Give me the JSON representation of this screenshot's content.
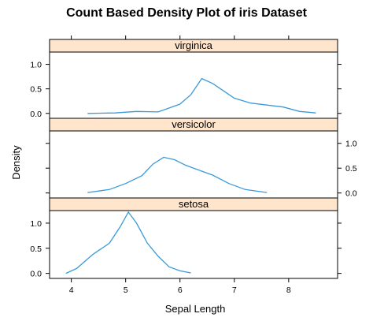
{
  "chart_data": {
    "type": "line",
    "title": "Count Based Density Plot of iris Dataset",
    "xlabel": "Sepal Length",
    "ylabel": "Density",
    "xlim": [
      3.6,
      8.9
    ],
    "ylim": [
      -0.1,
      1.25
    ],
    "x_ticks": [
      "4",
      "5",
      "6",
      "7",
      "8"
    ],
    "y_ticks": [
      "0.0",
      "0.5",
      "1.0"
    ],
    "line_color": "#3a9ad9",
    "strip_color": "#ffe5cc",
    "panels": [
      {
        "name": "virginica",
        "y_axis_side": "left",
        "points": [
          [
            4.3,
            0.0
          ],
          [
            4.8,
            0.01
          ],
          [
            5.2,
            0.04
          ],
          [
            5.6,
            0.03
          ],
          [
            6.0,
            0.19
          ],
          [
            6.2,
            0.38
          ],
          [
            6.4,
            0.71
          ],
          [
            6.6,
            0.61
          ],
          [
            6.8,
            0.46
          ],
          [
            7.0,
            0.31
          ],
          [
            7.3,
            0.21
          ],
          [
            7.6,
            0.17
          ],
          [
            7.9,
            0.13
          ],
          [
            8.2,
            0.04
          ],
          [
            8.5,
            0.01
          ]
        ]
      },
      {
        "name": "versicolor",
        "y_axis_side": "right",
        "points": [
          [
            4.3,
            0.01
          ],
          [
            4.7,
            0.07
          ],
          [
            5.0,
            0.19
          ],
          [
            5.3,
            0.35
          ],
          [
            5.5,
            0.58
          ],
          [
            5.7,
            0.72
          ],
          [
            5.9,
            0.67
          ],
          [
            6.1,
            0.56
          ],
          [
            6.3,
            0.48
          ],
          [
            6.6,
            0.36
          ],
          [
            6.9,
            0.19
          ],
          [
            7.2,
            0.07
          ],
          [
            7.6,
            0.01
          ]
        ]
      },
      {
        "name": "setosa",
        "y_axis_side": "left",
        "points": [
          [
            3.9,
            0.0
          ],
          [
            4.1,
            0.1
          ],
          [
            4.4,
            0.38
          ],
          [
            4.7,
            0.6
          ],
          [
            4.9,
            0.93
          ],
          [
            5.05,
            1.22
          ],
          [
            5.2,
            1.0
          ],
          [
            5.4,
            0.6
          ],
          [
            5.6,
            0.34
          ],
          [
            5.8,
            0.13
          ],
          [
            6.0,
            0.05
          ],
          [
            6.2,
            0.01
          ]
        ]
      }
    ]
  }
}
